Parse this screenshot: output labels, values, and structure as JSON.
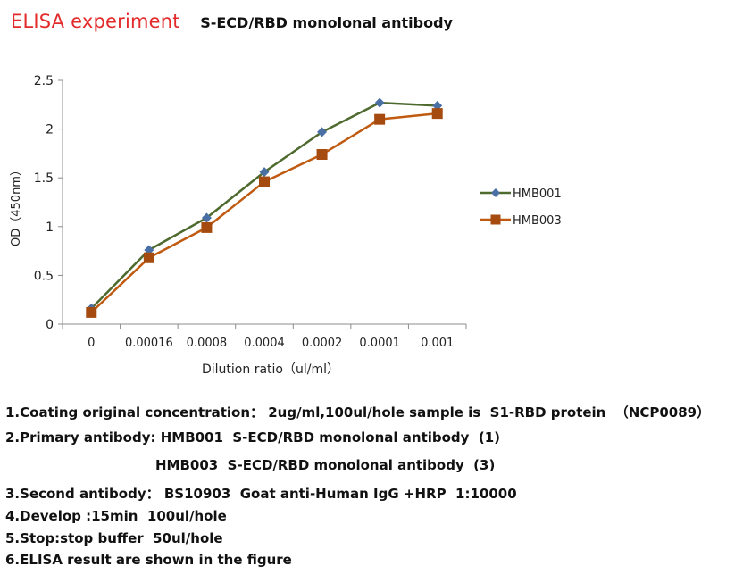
{
  "header": {
    "title": "ELISA experiment",
    "subtitle": "S-ECD/RBD monolonal antibody"
  },
  "chart_data": {
    "type": "line",
    "categories": [
      "0",
      "0.00016",
      "0.0008",
      "0.0004",
      "0.0002",
      "0.0001",
      "0.001"
    ],
    "series": [
      {
        "name": "HMB001",
        "values": [
          0.16,
          0.76,
          1.09,
          1.56,
          1.97,
          2.27,
          2.24
        ],
        "color": "#4e6a2e",
        "marker": "diamond",
        "marker_color": "#4a6fa5"
      },
      {
        "name": "HMB003",
        "values": [
          0.12,
          0.68,
          0.99,
          1.46,
          1.74,
          2.1,
          2.16
        ],
        "color": "#c05a10",
        "marker": "square",
        "marker_color": "#a64b0f"
      }
    ],
    "title": "",
    "xlabel": "Dilution ratio（ul/ml）",
    "ylabel": "OD（450nm）",
    "ylim": [
      0,
      2.5
    ],
    "yticks": [
      "0",
      "0.5",
      "1",
      "1.5",
      "2",
      "2.5"
    ],
    "grid": false,
    "legend_position": "right"
  },
  "notes": [
    "1.Coating original concentration： 2ug/ml,100ul/hole sample is  S1-RBD protein  （NCP0089）",
    "2.Primary antibody: HMB001  S-ECD/RBD monolonal antibody  (1)",
    "HMB003  S-ECD/RBD monolonal antibody  (3)",
    "3.Second antibody： BS10903  Goat anti-Human IgG +HRP  1:10000",
    "4.Develop :15min  100ul/hole",
    "5.Stop:stop buffer  50ul/hole",
    "6.ELISA result are shown in the figure"
  ]
}
